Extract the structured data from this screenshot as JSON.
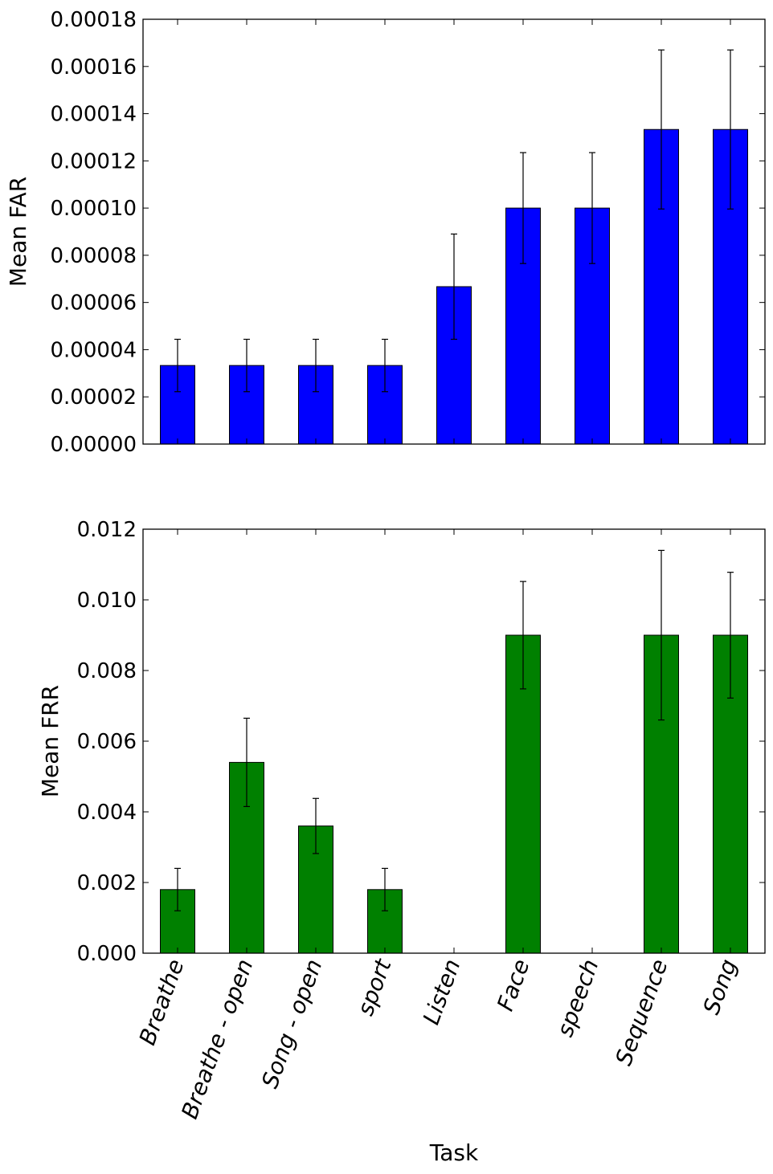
{
  "chart_data": [
    {
      "type": "bar",
      "title": "",
      "xlabel": "",
      "ylabel": "Mean FAR",
      "ylim": [
        0,
        0.00018
      ],
      "yticks": [
        "0.00000",
        "0.00002",
        "0.00004",
        "0.00006",
        "0.00008",
        "0.00010",
        "0.00012",
        "0.00014",
        "0.00016",
        "0.00018"
      ],
      "categories": [
        "Breathe",
        "Breathe - open",
        "Song - open",
        "sport",
        "Listen",
        "Face",
        "speech",
        "Sequence",
        "Song"
      ],
      "values": [
        3.33e-05,
        3.33e-05,
        3.33e-05,
        3.33e-05,
        6.67e-05,
        0.0001,
        0.0001,
        0.0001333,
        0.0001333
      ],
      "errors": [
        1.11e-05,
        1.11e-05,
        1.11e-05,
        1.11e-05,
        2.23e-05,
        2.35e-05,
        2.35e-05,
        3.37e-05,
        3.37e-05
      ],
      "color": "#0000ff",
      "show_xticklabels": false
    },
    {
      "type": "bar",
      "title": "",
      "xlabel": "Task",
      "ylabel": "Mean FRR",
      "ylim": [
        0,
        0.012
      ],
      "yticks": [
        "0.000",
        "0.002",
        "0.004",
        "0.006",
        "0.008",
        "0.010",
        "0.012"
      ],
      "categories": [
        "Breathe",
        "Breathe - open",
        "Song - open",
        "sport",
        "Listen",
        "Face",
        "speech",
        "Sequence",
        "Song"
      ],
      "values": [
        0.0018,
        0.0054,
        0.0036,
        0.0018,
        0.0,
        0.009,
        0.0,
        0.009,
        0.009
      ],
      "errors": [
        0.0006,
        0.00125,
        0.00078,
        0.0006,
        0.0,
        0.00152,
        0.0,
        0.0024,
        0.00178
      ],
      "color": "#008000",
      "show_xticklabels": true
    }
  ]
}
